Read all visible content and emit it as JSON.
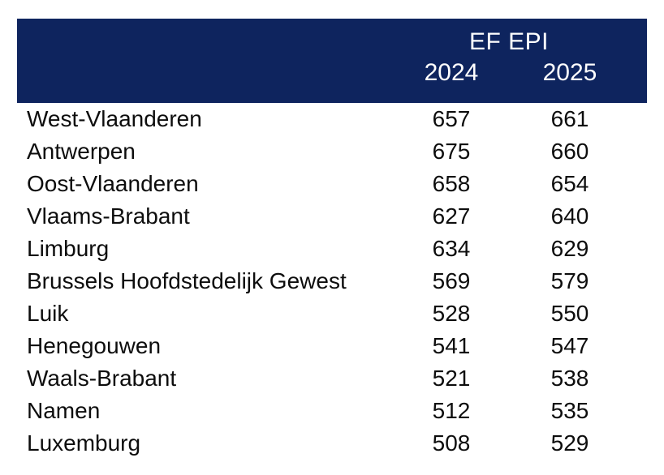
{
  "table": {
    "header": {
      "group_label": "EF EPI",
      "col_2024": "2024",
      "col_2025": "2025",
      "background_color": "#0e245e",
      "text_color": "#ffffff"
    },
    "body_text_color": "#0d0d0d",
    "rows": [
      {
        "region": "West-Vlaanderen",
        "v2024": "657",
        "v2025": "661"
      },
      {
        "region": "Antwerpen",
        "v2024": "675",
        "v2025": "660"
      },
      {
        "region": "Oost-Vlaanderen",
        "v2024": "658",
        "v2025": "654"
      },
      {
        "region": "Vlaams-Brabant",
        "v2024": "627",
        "v2025": "640"
      },
      {
        "region": "Limburg",
        "v2024": "634",
        "v2025": "629"
      },
      {
        "region": "Brussels Hoofdstedelijk Gewest",
        "v2024": "569",
        "v2025": "579"
      },
      {
        "region": "Luik",
        "v2024": "528",
        "v2025": "550"
      },
      {
        "region": "Henegouwen",
        "v2024": "541",
        "v2025": "547"
      },
      {
        "region": "Waals-Brabant",
        "v2024": "521",
        "v2025": "538"
      },
      {
        "region": "Namen",
        "v2024": "512",
        "v2025": "535"
      },
      {
        "region": "Luxemburg",
        "v2024": "508",
        "v2025": "529"
      }
    ]
  },
  "chart_data": {
    "type": "table",
    "title": "EF EPI",
    "categories": [
      "West-Vlaanderen",
      "Antwerpen",
      "Oost-Vlaanderen",
      "Vlaams-Brabant",
      "Limburg",
      "Brussels Hoofdstedelijk Gewest",
      "Luik",
      "Henegouwen",
      "Waals-Brabant",
      "Namen",
      "Luxemburg"
    ],
    "series": [
      {
        "name": "2024",
        "values": [
          657,
          675,
          658,
          627,
          634,
          569,
          528,
          541,
          521,
          512,
          508
        ]
      },
      {
        "name": "2025",
        "values": [
          661,
          660,
          654,
          640,
          629,
          579,
          550,
          547,
          538,
          535,
          529
        ]
      }
    ],
    "legend_position": "header",
    "grid": false
  }
}
